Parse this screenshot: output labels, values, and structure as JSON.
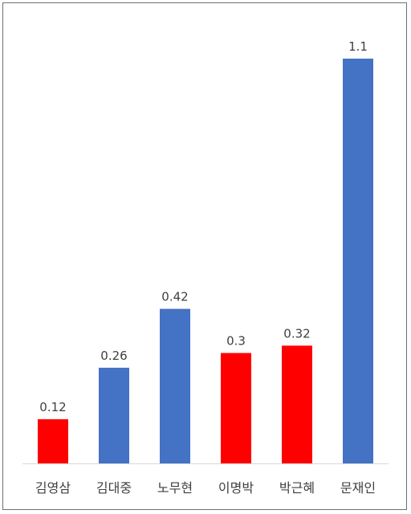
{
  "chart_data": {
    "type": "bar",
    "title": "",
    "xlabel": "",
    "ylabel": "",
    "categories": [
      "김영삼",
      "김대중",
      "노무현",
      "이명박",
      "박근혜",
      "문재인"
    ],
    "values": [
      0.12,
      0.26,
      0.42,
      0.3,
      0.32,
      1.1
    ],
    "value_labels": [
      "0.12",
      "0.26",
      "0.42",
      "0.3",
      "0.32",
      "1.1"
    ],
    "bar_colors": [
      "#ff0000",
      "#4472c4",
      "#4472c4",
      "#ff0000",
      "#ff0000",
      "#4472c4"
    ],
    "ylim": [
      0,
      1.1
    ],
    "grid": false,
    "legend": "none",
    "axis_line_color": "#d9d9d9"
  }
}
